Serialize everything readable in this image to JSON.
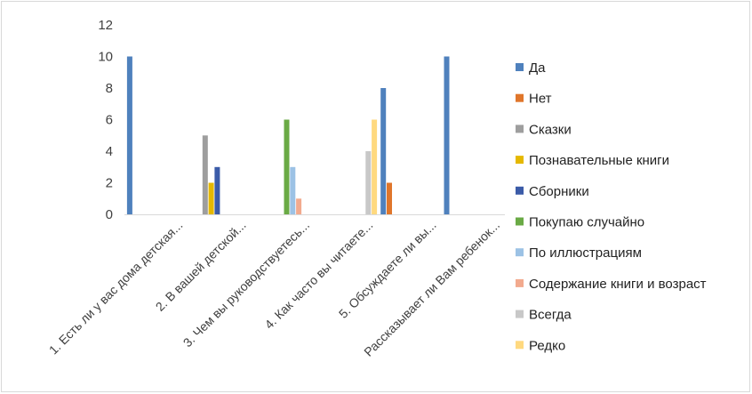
{
  "chart_data": {
    "type": "bar",
    "title": "",
    "xlabel": "",
    "ylabel": "",
    "ylim": [
      0,
      12
    ],
    "yticks": [
      0,
      2,
      4,
      6,
      8,
      10,
      12
    ],
    "grid": false,
    "legend_position": "right",
    "categories": [
      "1. Есть ли у вас дома детская...",
      "2. В вашей детской...",
      "3. Чем вы руководствуетесь...",
      "4. Как часто вы читаете...",
      "5. Обсуждаете ли вы...",
      "Рассказывает ли Вам ребенок..."
    ],
    "series": [
      {
        "name": "Да",
        "color": "#4f81bd",
        "values": [
          10,
          0,
          0,
          0,
          8,
          10
        ]
      },
      {
        "name": "Нет",
        "color": "#e0762b",
        "values": [
          0,
          0,
          0,
          0,
          2,
          0
        ]
      },
      {
        "name": "Сказки",
        "color": "#9e9e9e",
        "values": [
          0,
          5,
          0,
          0,
          0,
          0
        ]
      },
      {
        "name": "Познавательные книги",
        "color": "#e5b800",
        "values": [
          0,
          2,
          0,
          0,
          0,
          0
        ]
      },
      {
        "name": "Сборники",
        "color": "#3b5ba8",
        "values": [
          0,
          3,
          0,
          0,
          0,
          0
        ]
      },
      {
        "name": "Покупаю случайно",
        "color": "#6aaa45",
        "values": [
          0,
          0,
          6,
          0,
          0,
          0
        ]
      },
      {
        "name": "По иллюстрациям",
        "color": "#9cc2e5",
        "values": [
          0,
          0,
          3,
          0,
          0,
          0
        ]
      },
      {
        "name": "Содержание книги и возраст",
        "color": "#f2aa8e",
        "values": [
          0,
          0,
          1,
          0,
          0,
          0
        ]
      },
      {
        "name": "Всегда",
        "color": "#c8c8c8",
        "values": [
          0,
          0,
          0,
          4,
          0,
          0
        ]
      },
      {
        "name": "Редко",
        "color": "#ffd97f",
        "values": [
          0,
          0,
          0,
          6,
          0,
          0
        ]
      }
    ]
  }
}
